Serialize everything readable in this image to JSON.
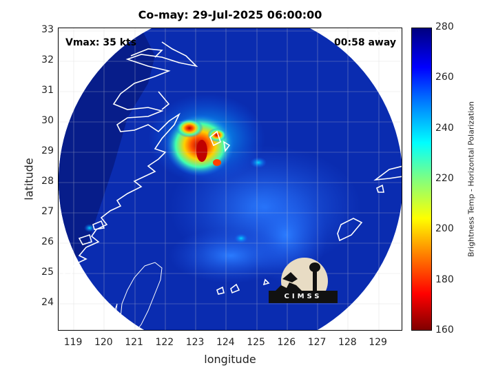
{
  "title": "Co-may: 29-Jul-2025 06:00:00",
  "vmax_label": "Vmax: 35 kts",
  "away_label": "00:58 away",
  "xlabel": "longitude",
  "ylabel": "latitude",
  "colorbar_label": "Brightness Temp - Horizontal Polarization",
  "logo_text": "CIMSS",
  "x_ticks": [
    "119",
    "120",
    "121",
    "122",
    "123",
    "124",
    "125",
    "126",
    "127",
    "128",
    "129"
  ],
  "y_ticks": [
    "33",
    "32",
    "31",
    "30",
    "29",
    "28",
    "27",
    "26",
    "25",
    "24"
  ],
  "colorbar_ticks": [
    "280",
    "260",
    "240",
    "220",
    "200",
    "180",
    "160"
  ],
  "colors": {
    "scene_background": "#0a2cb0",
    "land_background": "#071d8a",
    "coastline": "#ffffff",
    "cold_core": "#ff2a00",
    "logo_circle": "#e8dcc4"
  },
  "map_data": {
    "x_range": [
      118.5,
      129.8
    ],
    "y_range": [
      23.1,
      33.1
    ],
    "variable": "Brightness Temp - Horizontal Polarization",
    "colorbar_range": [
      160,
      280
    ],
    "storm_center_approx": [
      123.0,
      29.2
    ]
  }
}
